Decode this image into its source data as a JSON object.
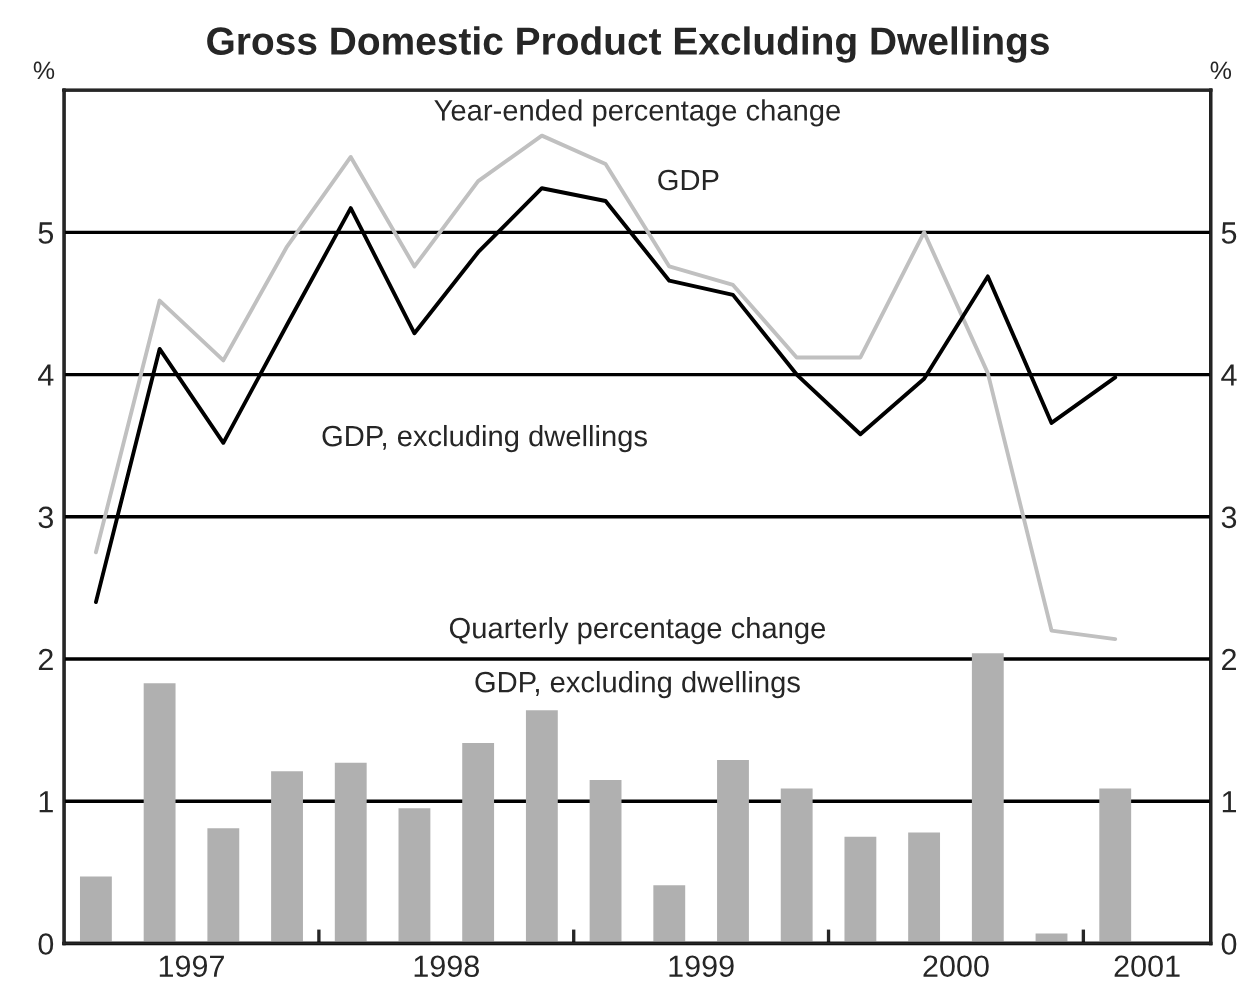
{
  "chart_data": {
    "type": "line",
    "title": "Gross Domestic Product Excluding Dwellings",
    "ylabel": "%",
    "y2label": "%",
    "x": [
      1997.125,
      1997.375,
      1997.625,
      1997.875,
      1998.125,
      1998.375,
      1998.625,
      1998.875,
      1999.125,
      1999.375,
      1999.625,
      1999.875,
      2000.125,
      2000.375,
      2000.625,
      2000.875,
      2001.125
    ],
    "series": [
      {
        "name": "GDP, excluding dwellings",
        "type": "bar",
        "color": "#b0b0b0",
        "values": [
          0.47,
          1.83,
          0.81,
          1.21,
          1.27,
          0.95,
          1.41,
          1.64,
          1.15,
          0.41,
          1.29,
          1.09,
          0.75,
          0.78,
          2.04,
          0.07,
          1.09
        ]
      },
      {
        "name": "GDP",
        "color": "#c0c0c0",
        "values": [
          2.75,
          4.52,
          4.1,
          4.9,
          5.53,
          4.76,
          5.36,
          5.68,
          5.48,
          4.76,
          4.63,
          4.12,
          4.12,
          5.0,
          4.01,
          2.2,
          2.14
        ]
      },
      {
        "name": "GDP, excluding dwellings",
        "color": "#000000",
        "values": [
          2.4,
          4.18,
          3.52,
          4.35,
          5.17,
          4.29,
          4.86,
          5.31,
          5.22,
          4.66,
          4.56,
          4.0,
          3.58,
          3.97,
          4.69,
          3.66,
          3.98
        ]
      }
    ],
    "annotations": [
      "Year-ended percentage change",
      "Quarterly percentage change"
    ],
    "xlim": [
      1997.0,
      2001.5
    ],
    "xticks": [
      {
        "value": 1997.5,
        "label": "1997"
      },
      {
        "value": 1998,
        "label": null
      },
      {
        "value": 1998.5,
        "label": "1998"
      },
      {
        "value": 1999,
        "label": null
      },
      {
        "value": 1999.5,
        "label": "1999"
      },
      {
        "value": 2000,
        "label": null
      },
      {
        "value": 2000.5,
        "label": "2000"
      },
      {
        "value": 2001,
        "label": null
      },
      {
        "value": 2001.25,
        "label": "2001"
      }
    ],
    "ylim": [
      0,
      6
    ],
    "yticks": [
      0,
      1,
      2,
      3,
      4,
      5
    ],
    "y2lim": [
      0,
      6
    ],
    "y2ticks": [
      0,
      1,
      2,
      3,
      4,
      5
    ],
    "grid": "y",
    "legend": false
  }
}
